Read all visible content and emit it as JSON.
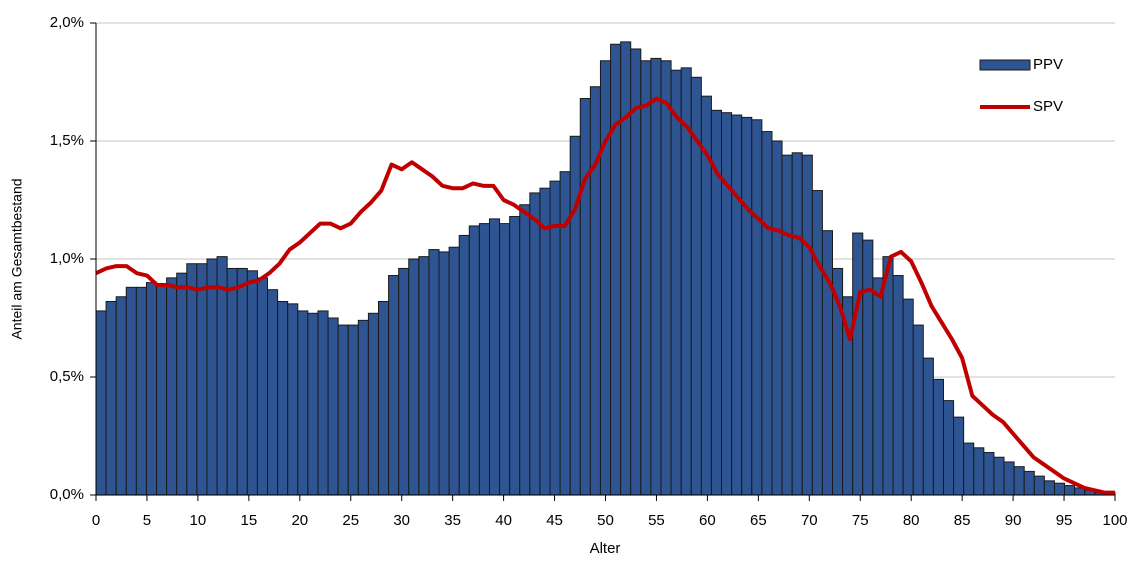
{
  "chart_data": {
    "type": "combo",
    "y_label": "Anteil am Gesamtbestand",
    "x_label": "Alter",
    "x": [
      0,
      1,
      2,
      3,
      4,
      5,
      6,
      7,
      8,
      9,
      10,
      11,
      12,
      13,
      14,
      15,
      16,
      17,
      18,
      19,
      20,
      21,
      22,
      23,
      24,
      25,
      26,
      27,
      28,
      29,
      30,
      31,
      32,
      33,
      34,
      35,
      36,
      37,
      38,
      39,
      40,
      41,
      42,
      43,
      44,
      45,
      46,
      47,
      48,
      49,
      50,
      51,
      52,
      53,
      54,
      55,
      56,
      57,
      58,
      59,
      60,
      61,
      62,
      63,
      64,
      65,
      66,
      67,
      68,
      69,
      70,
      71,
      72,
      73,
      74,
      75,
      76,
      77,
      78,
      79,
      80,
      81,
      82,
      83,
      84,
      85,
      86,
      87,
      88,
      89,
      90,
      91,
      92,
      93,
      94,
      95,
      96,
      97,
      98,
      99,
      100
    ],
    "xlim": [
      0,
      100
    ],
    "xticks": [
      0,
      5,
      10,
      15,
      20,
      25,
      30,
      35,
      40,
      45,
      50,
      55,
      60,
      65,
      70,
      75,
      80,
      85,
      90,
      95,
      100
    ],
    "ylim": [
      0,
      2
    ],
    "yticks": [
      {
        "value": 0,
        "label": "0,0%"
      },
      {
        "value": 0.5,
        "label": "0,5%"
      },
      {
        "value": 1,
        "label": "1,0%"
      },
      {
        "value": 1.5,
        "label": "1,5%"
      },
      {
        "value": 2,
        "label": "2,0%"
      }
    ],
    "grid": true,
    "legend": "top-right",
    "series": [
      {
        "name": "PPV",
        "type": "bar",
        "color": "#2e5591",
        "values": [
          0.78,
          0.82,
          0.84,
          0.88,
          0.88,
          0.9,
          0.89,
          0.92,
          0.94,
          0.98,
          0.98,
          1.0,
          1.01,
          0.96,
          0.96,
          0.95,
          0.92,
          0.87,
          0.82,
          0.81,
          0.78,
          0.77,
          0.78,
          0.75,
          0.72,
          0.72,
          0.74,
          0.77,
          0.82,
          0.93,
          0.96,
          1.0,
          1.01,
          1.04,
          1.03,
          1.05,
          1.1,
          1.14,
          1.15,
          1.17,
          1.15,
          1.18,
          1.23,
          1.28,
          1.3,
          1.33,
          1.37,
          1.52,
          1.68,
          1.73,
          1.84,
          1.91,
          1.92,
          1.89,
          1.84,
          1.85,
          1.84,
          1.8,
          1.81,
          1.77,
          1.69,
          1.63,
          1.62,
          1.61,
          1.6,
          1.59,
          1.54,
          1.5,
          1.44,
          1.45,
          1.44,
          1.29,
          1.12,
          0.96,
          0.84,
          1.11,
          1.08,
          0.92,
          1.01,
          0.93,
          0.83,
          0.72,
          0.58,
          0.49,
          0.4,
          0.33,
          0.22,
          0.2,
          0.18,
          0.16,
          0.14,
          0.12,
          0.1,
          0.08,
          0.06,
          0.05,
          0.04,
          0.03,
          0.02,
          0.01,
          0.01
        ]
      },
      {
        "name": "SPV",
        "type": "line",
        "color": "#c00000",
        "values": [
          0.94,
          0.96,
          0.97,
          0.97,
          0.94,
          0.93,
          0.89,
          0.89,
          0.88,
          0.88,
          0.87,
          0.88,
          0.88,
          0.87,
          0.88,
          0.9,
          0.91,
          0.94,
          0.98,
          1.04,
          1.07,
          1.11,
          1.15,
          1.15,
          1.13,
          1.15,
          1.2,
          1.24,
          1.29,
          1.4,
          1.38,
          1.41,
          1.38,
          1.35,
          1.31,
          1.3,
          1.3,
          1.32,
          1.31,
          1.31,
          1.25,
          1.23,
          1.2,
          1.17,
          1.13,
          1.14,
          1.14,
          1.21,
          1.34,
          1.4,
          1.5,
          1.57,
          1.6,
          1.64,
          1.65,
          1.68,
          1.66,
          1.6,
          1.56,
          1.5,
          1.44,
          1.36,
          1.31,
          1.26,
          1.21,
          1.17,
          1.13,
          1.12,
          1.1,
          1.09,
          1.05,
          0.97,
          0.9,
          0.8,
          0.66,
          0.86,
          0.87,
          0.84,
          1.01,
          1.03,
          0.99,
          0.9,
          0.8,
          0.73,
          0.66,
          0.58,
          0.42,
          0.38,
          0.34,
          0.31,
          0.26,
          0.21,
          0.16,
          0.13,
          0.1,
          0.07,
          0.05,
          0.03,
          0.02,
          0.01,
          0.01
        ]
      }
    ]
  }
}
